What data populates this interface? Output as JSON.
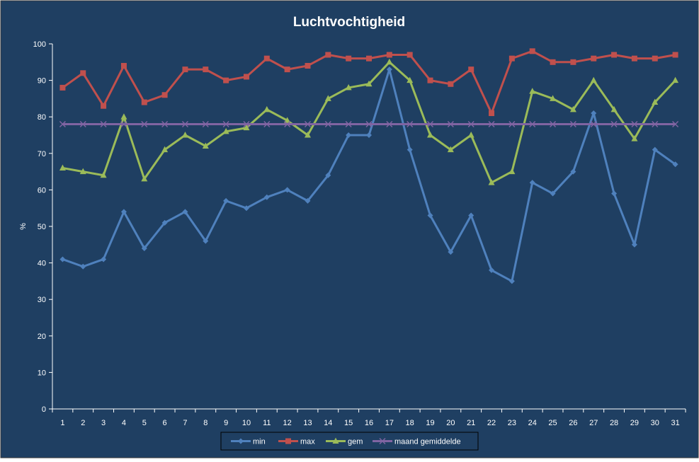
{
  "chart_data": {
    "type": "line",
    "title": "Luchtvochtigheid",
    "xlabel": "",
    "ylabel": "%",
    "ylim": [
      0,
      100
    ],
    "yticks": [
      0,
      10,
      20,
      30,
      40,
      50,
      60,
      70,
      80,
      90,
      100
    ],
    "categories": [
      "1",
      "2",
      "3",
      "4",
      "5",
      "6",
      "7",
      "8",
      "9",
      "10",
      "11",
      "12",
      "13",
      "14",
      "15",
      "16",
      "17",
      "18",
      "19",
      "20",
      "21",
      "22",
      "23",
      "24",
      "25",
      "26",
      "27",
      "28",
      "29",
      "30",
      "31"
    ],
    "grid": false,
    "legend_position": "bottom",
    "series": [
      {
        "name": "min",
        "color": "#4f81bd",
        "marker": "diamond",
        "values": [
          41,
          39,
          41,
          54,
          44,
          51,
          54,
          46,
          57,
          55,
          58,
          60,
          57,
          64,
          75,
          75,
          93,
          71,
          53,
          43,
          53,
          38,
          35,
          62,
          59,
          65,
          81,
          59,
          45,
          71,
          67
        ]
      },
      {
        "name": "max",
        "color": "#c0504d",
        "marker": "square",
        "values": [
          88,
          92,
          83,
          94,
          84,
          86,
          93,
          93,
          90,
          91,
          96,
          93,
          94,
          97,
          96,
          96,
          97,
          97,
          90,
          89,
          93,
          81,
          96,
          98,
          95,
          95,
          96,
          97,
          96,
          96,
          97
        ]
      },
      {
        "name": "gem",
        "color": "#9bbb59",
        "marker": "triangle",
        "values": [
          66,
          65,
          64,
          80,
          63,
          71,
          75,
          72,
          76,
          77,
          82,
          79,
          75,
          85,
          88,
          89,
          95,
          90,
          75,
          71,
          75,
          62,
          65,
          87,
          85,
          82,
          90,
          82,
          74,
          84,
          90
        ]
      },
      {
        "name": "maand gemiddelde",
        "color": "#8064a2",
        "marker": "x",
        "values": [
          78,
          78,
          78,
          78,
          78,
          78,
          78,
          78,
          78,
          78,
          78,
          78,
          78,
          78,
          78,
          78,
          78,
          78,
          78,
          78,
          78,
          78,
          78,
          78,
          78,
          78,
          78,
          78,
          78,
          78,
          78
        ]
      }
    ]
  },
  "colors": {
    "background": "#1f3f62",
    "axis": "#ffffff",
    "text": "#ffffff"
  }
}
